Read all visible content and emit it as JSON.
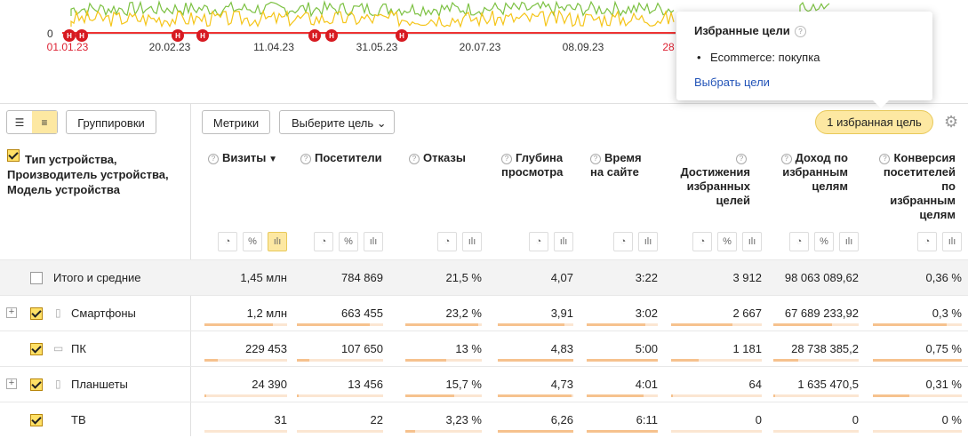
{
  "chart": {
    "y_zero_label": "0",
    "x_labels": [
      {
        "text": "01.01.23",
        "red": true
      },
      {
        "text": "20.02.23",
        "red": false
      },
      {
        "text": "11.04.23",
        "red": false
      },
      {
        "text": "31.05.23",
        "red": false
      },
      {
        "text": "20.07.23",
        "red": false
      },
      {
        "text": "08.09.23",
        "red": false
      },
      {
        "text": "28",
        "red": true
      }
    ],
    "marker_label": "H",
    "line_colors": {
      "green": "#7cc142",
      "yellow": "#f5c518",
      "red": "#e33"
    }
  },
  "popup": {
    "title": "Избранные цели",
    "help": "?",
    "goal": "Ecommerce: покупка",
    "link": "Выбрать цели"
  },
  "toolbar": {
    "groupings": "Группировки",
    "metrics": "Метрики",
    "choose_goal": "Выберите цель",
    "favorites": "1 избранная цель"
  },
  "table": {
    "dim_header": "Тип устройства, Производитель устройства, Модель устройства",
    "columns": [
      {
        "label": "Визиты",
        "sort": "▼"
      },
      {
        "label": "Посетители"
      },
      {
        "label": "Отказы"
      },
      {
        "label": "Глубина просмотра"
      },
      {
        "label": "Время на сайте"
      },
      {
        "label": "Достижения избранных целей"
      },
      {
        "label": "Доход по избранным целям"
      },
      {
        "label": "Конверсия посетителей по избранным целям"
      }
    ],
    "icon_labels": {
      "pie": "◔",
      "pct": "%",
      "bars": "ılı"
    },
    "total": {
      "label": "Итого и средние",
      "values": [
        "1,45 млн",
        "784 869",
        "21,5 %",
        "4,07",
        "3:22",
        "3 912",
        "98 063 089,62",
        "0,36 %"
      ]
    },
    "rows": [
      {
        "label": "Смартфоны",
        "values": [
          "1,2 млн",
          "663 455",
          "23,2 %",
          "3,91",
          "3:02",
          "2 667",
          "67 689 233,92",
          "0,3 %"
        ],
        "bars": [
          0.83,
          0.85,
          0.95,
          0.88,
          0.82,
          0.68,
          0.69,
          0.83
        ]
      },
      {
        "label": "ПК",
        "values": [
          "229 453",
          "107 650",
          "13 %",
          "4,83",
          "5:00",
          "1 181",
          "28 738 385,2",
          "0,75 %"
        ],
        "bars": [
          0.16,
          0.14,
          0.53,
          1.0,
          1.0,
          0.3,
          0.29,
          1.0
        ]
      },
      {
        "label": "Планшеты",
        "values": [
          "24 390",
          "13 456",
          "15,7 %",
          "4,73",
          "4:01",
          "64",
          "1 635 470,5",
          "0,31 %"
        ],
        "bars": [
          0.02,
          0.02,
          0.64,
          0.98,
          0.8,
          0.02,
          0.02,
          0.41
        ]
      },
      {
        "label": "ТВ",
        "values": [
          "31",
          "22",
          "3,23 %",
          "6,26",
          "6:11",
          "0",
          "0",
          "0 %"
        ],
        "bars": [
          0,
          0,
          0.13,
          1.0,
          1.0,
          0,
          0,
          0
        ]
      }
    ]
  }
}
